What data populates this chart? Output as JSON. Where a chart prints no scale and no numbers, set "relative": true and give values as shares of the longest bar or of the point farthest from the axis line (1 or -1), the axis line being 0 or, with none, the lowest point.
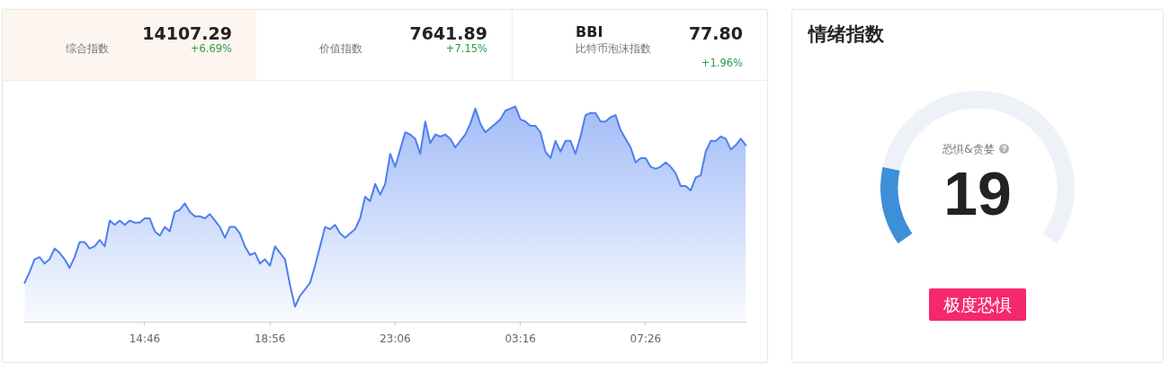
{
  "chart_data": [
    {
      "type": "other",
      "subtitle": "综合指数",
      "annotations": [
        "14107.29",
        "+6.69%"
      ]
    },
    {
      "type": "other",
      "subtitle": "价值指数",
      "annotations": [
        "7641.89",
        "+7.15%"
      ]
    },
    {
      "type": "other",
      "title": "BBI",
      "subtitle": "比特币泡沫指数",
      "annotations": [
        "77.80",
        "+1.96%"
      ]
    },
    {
      "type": "area",
      "relative": true,
      "color": "#4d7ff0",
      "categories": [
        null,
        null,
        null,
        null,
        null,
        null,
        null,
        null,
        null,
        null,
        null,
        null,
        null,
        null,
        null,
        null,
        null,
        null,
        null,
        null,
        null,
        null,
        null,
        null,
        "14:46",
        null,
        null,
        null,
        null,
        null,
        null,
        null,
        null,
        null,
        null,
        null,
        null,
        null,
        null,
        null,
        null,
        null,
        null,
        null,
        null,
        null,
        null,
        null,
        null,
        "18:56",
        null,
        null,
        null,
        null,
        null,
        null,
        null,
        null,
        null,
        null,
        null,
        null,
        null,
        null,
        null,
        null,
        null,
        null,
        null,
        null,
        null,
        null,
        null,
        null,
        "23:06",
        null,
        null,
        null,
        null,
        null,
        null,
        null,
        null,
        null,
        null,
        null,
        null,
        null,
        null,
        null,
        null,
        null,
        null,
        null,
        null,
        null,
        null,
        null,
        null,
        "03:16",
        null,
        null,
        null,
        null,
        null,
        null,
        null,
        null,
        null,
        null,
        null,
        null,
        null,
        null,
        null,
        null,
        null,
        null,
        null,
        null,
        null,
        null,
        null,
        null,
        "07:26",
        null,
        null,
        null,
        null,
        null,
        null,
        null,
        null,
        null,
        null,
        null,
        null,
        null,
        null,
        null,
        null,
        null,
        null,
        null,
        null
      ],
      "values": [
        0.18,
        0.23,
        0.29,
        0.3,
        0.27,
        0.29,
        0.34,
        0.32,
        0.29,
        0.25,
        0.3,
        0.37,
        0.37,
        0.34,
        0.35,
        0.38,
        0.35,
        0.47,
        0.45,
        0.47,
        0.45,
        0.47,
        0.46,
        0.46,
        0.48,
        0.48,
        0.42,
        0.4,
        0.44,
        0.42,
        0.51,
        0.52,
        0.55,
        0.51,
        0.49,
        0.49,
        0.48,
        0.5,
        0.47,
        0.44,
        0.39,
        0.44,
        0.44,
        0.41,
        0.35,
        0.31,
        0.32,
        0.27,
        0.29,
        0.26,
        0.35,
        0.32,
        0.29,
        0.17,
        0.07,
        0.12,
        0.15,
        0.18,
        0.26,
        0.35,
        0.44,
        0.43,
        0.45,
        0.41,
        0.39,
        0.41,
        0.43,
        0.48,
        0.58,
        0.56,
        0.64,
        0.59,
        0.64,
        0.78,
        0.72,
        0.8,
        0.88,
        0.87,
        0.85,
        0.78,
        0.93,
        0.83,
        0.87,
        0.86,
        0.87,
        0.85,
        0.81,
        0.84,
        0.87,
        0.92,
        0.99,
        0.92,
        0.88,
        0.9,
        0.92,
        0.94,
        0.98,
        0.99,
        1,
        0.94,
        0.93,
        0.91,
        0.91,
        0.88,
        0.79,
        0.76,
        0.84,
        0.79,
        0.84,
        0.84,
        0.78,
        0.86,
        0.96,
        0.97,
        0.97,
        0.93,
        0.93,
        0.95,
        0.96,
        0.89,
        0.85,
        0.81,
        0.74,
        0.76,
        0.76,
        0.72,
        0.71,
        0.72,
        0.74,
        0.72,
        0.69,
        0.63,
        0.63,
        0.61,
        0.67,
        0.68,
        0.79,
        0.84,
        0.84,
        0.86,
        0.85,
        0.8,
        0.82,
        0.85,
        0.82
      ]
    },
    {
      "type": "donut",
      "title": "情绪指数",
      "categories": [
        null,
        null
      ],
      "values": [
        19,
        81
      ],
      "colors": [
        "#3d8fd8",
        "#eef1f7"
      ],
      "annotations": [
        "恐惧&贪婪",
        "19",
        "极度恐惧"
      ]
    }
  ]
}
